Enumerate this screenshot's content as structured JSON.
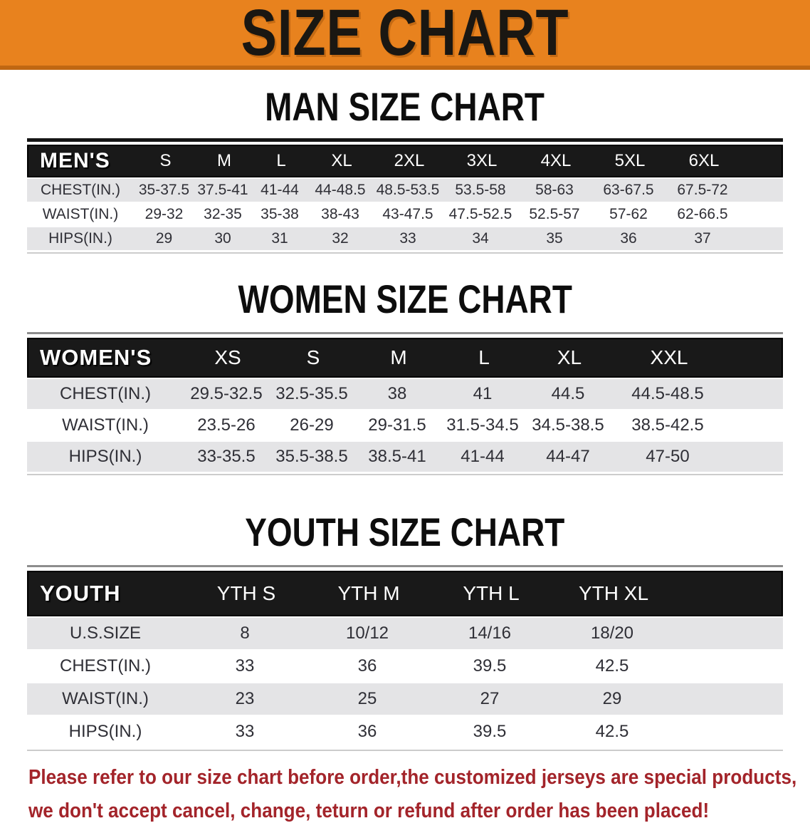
{
  "banner": {
    "title": "SIZE CHART"
  },
  "sections": [
    {
      "heading": "MAN SIZE CHART",
      "group_label": "MEN'S",
      "columns": [
        "S",
        "M",
        "L",
        "XL",
        "2XL",
        "3XL",
        "4XL",
        "5XL",
        "6XL"
      ],
      "rows": [
        {
          "label": "CHEST(IN.)",
          "values": [
            "35-37.5",
            "37.5-41",
            "41-44",
            "44-48.5",
            "48.5-53.5",
            "53.5-58",
            "58-63",
            "63-67.5",
            "67.5-72"
          ]
        },
        {
          "label": "WAIST(IN.)",
          "values": [
            "29-32",
            "32-35",
            "35-38",
            "38-43",
            "43-47.5",
            "47.5-52.5",
            "52.5-57",
            "57-62",
            "62-66.5"
          ]
        },
        {
          "label": "HIPS(IN.)",
          "values": [
            "29",
            "30",
            "31",
            "32",
            "33",
            "34",
            "35",
            "36",
            "37"
          ]
        }
      ]
    },
    {
      "heading": "WOMEN SIZE CHART",
      "group_label": "WOMEN'S",
      "columns": [
        "XS",
        "S",
        "M",
        "L",
        "XL",
        "XXL"
      ],
      "rows": [
        {
          "label": "CHEST(IN.)",
          "values": [
            "29.5-32.5",
            "32.5-35.5",
            "38",
            "41",
            "44.5",
            "44.5-48.5"
          ]
        },
        {
          "label": "WAIST(IN.)",
          "values": [
            "23.5-26",
            "26-29",
            "29-31.5",
            "31.5-34.5",
            "34.5-38.5",
            "38.5-42.5"
          ]
        },
        {
          "label": "HIPS(IN.)",
          "values": [
            "33-35.5",
            "35.5-38.5",
            "38.5-41",
            "41-44",
            "44-47",
            "47-50"
          ]
        }
      ]
    },
    {
      "heading": "YOUTH SIZE CHART",
      "group_label": "YOUTH",
      "columns": [
        "YTH S",
        "YTH M",
        "YTH L",
        "YTH XL"
      ],
      "rows": [
        {
          "label": "U.S.SIZE",
          "values": [
            "8",
            "10/12",
            "14/16",
            "18/20"
          ]
        },
        {
          "label": "CHEST(IN.)",
          "values": [
            "33",
            "36",
            "39.5",
            "42.5"
          ]
        },
        {
          "label": "WAIST(IN.)",
          "values": [
            "23",
            "25",
            "27",
            "29"
          ]
        },
        {
          "label": "HIPS(IN.)",
          "values": [
            "33",
            "36",
            "39.5",
            "42.5"
          ]
        }
      ]
    }
  ],
  "disclaimer": {
    "line1": "Please refer to our size chart before order,the customized jerseys are special products,",
    "line2": "we don't accept cancel, change, teturn or refund after order has been placed!"
  },
  "colors": {
    "banner_orange": "#E8821E",
    "banner_border": "#C06712",
    "band_black": "#191919",
    "row_gray": "#E4E4E6",
    "row_text": "#2F2F36",
    "disclaimer_red": "#A3242A"
  }
}
